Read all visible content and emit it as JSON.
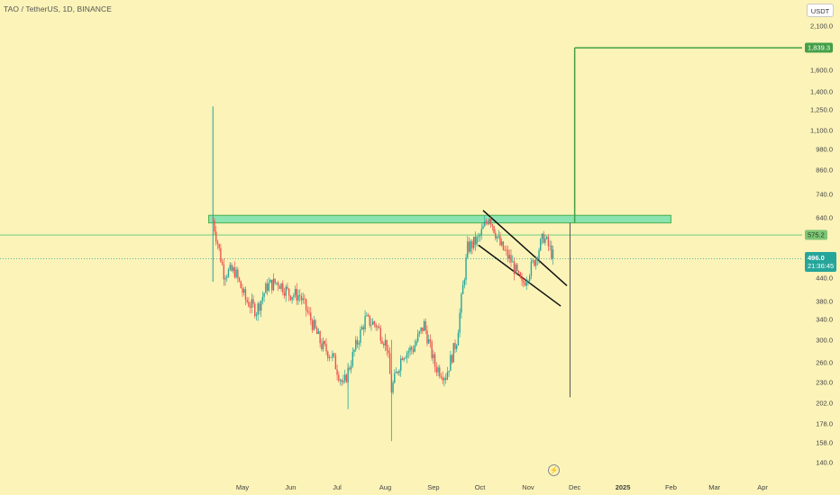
{
  "header": {
    "symbol_title": "TAO / TetherUS, 1D, BINANCE"
  },
  "price_axis": {
    "currency_button": "USDT",
    "ticks": [
      "2,100.0",
      "1,600.0",
      "1,400.0",
      "1,250.0",
      "1,100.0",
      "980.0",
      "860.0",
      "740.0",
      "640.0",
      "440.0",
      "380.0",
      "340.0",
      "300.0",
      "260.0",
      "230.0",
      "202.0",
      "178.0",
      "158.0",
      "140.0"
    ],
    "target_badge": "1,839.3",
    "resistance_badge": "575.2",
    "current_price": "496.0",
    "countdown": "21:36:45"
  },
  "time_axis": {
    "months": [
      "May",
      "Jun",
      "Jul",
      "Aug",
      "Sep",
      "Oct",
      "Nov",
      "Dec",
      "2025",
      "Feb",
      "Mar",
      "Apr"
    ]
  },
  "colors": {
    "up": "#26a69a",
    "down": "#ef5350",
    "zone": "#8be3b0",
    "target_line": "#43a047",
    "background": "#fbf3b8"
  },
  "icons": {
    "lightning": "lightning-icon"
  },
  "chart_data": {
    "type": "candlestick",
    "symbol": "TAO / TetherUS",
    "interval": "1D",
    "exchange": "BINANCE",
    "x_range": [
      "2024-04-10",
      "2025-04-15"
    ],
    "y_range": [
      130,
      2200
    ],
    "log_scale": true,
    "grid": false,
    "series": [
      {
        "name": "close_weekly",
        "points": [
          [
            "2024-04-12",
            630
          ],
          [
            "2024-04-19",
            455
          ],
          [
            "2024-04-26",
            460
          ],
          [
            "2024-05-03",
            385
          ],
          [
            "2024-05-10",
            360
          ],
          [
            "2024-05-17",
            420
          ],
          [
            "2024-05-24",
            430
          ],
          [
            "2024-05-31",
            400
          ],
          [
            "2024-06-07",
            395
          ],
          [
            "2024-06-14",
            340
          ],
          [
            "2024-06-21",
            290
          ],
          [
            "2024-06-28",
            270
          ],
          [
            "2024-07-05",
            225
          ],
          [
            "2024-07-12",
            280
          ],
          [
            "2024-07-19",
            340
          ],
          [
            "2024-07-26",
            330
          ],
          [
            "2024-08-02",
            290
          ],
          [
            "2024-08-05",
            220
          ],
          [
            "2024-08-12",
            275
          ],
          [
            "2024-08-19",
            285
          ],
          [
            "2024-08-26",
            330
          ],
          [
            "2024-09-02",
            255
          ],
          [
            "2024-09-09",
            240
          ],
          [
            "2024-09-16",
            300
          ],
          [
            "2024-09-23",
            530
          ],
          [
            "2024-09-30",
            560
          ],
          [
            "2024-10-07",
            650
          ],
          [
            "2024-10-14",
            540
          ],
          [
            "2024-10-21",
            490
          ],
          [
            "2024-10-28",
            420
          ],
          [
            "2024-11-04",
            480
          ],
          [
            "2024-11-11",
            570
          ],
          [
            "2024-11-18",
            496
          ]
        ]
      }
    ],
    "annotations": [
      {
        "type": "resistance_zone",
        "price_low": 620,
        "price_high": 650,
        "from": "2024-04-11",
        "to": "2025-02-01"
      },
      {
        "type": "horizontal_line",
        "price": 575.2
      },
      {
        "type": "target_line",
        "price": 1839.3,
        "from": "2024-12-01",
        "to": "2025-04-15"
      },
      {
        "type": "falling_channel",
        "upper": [
          [
            "2024-10-03",
            670
          ],
          [
            "2024-11-26",
            420
          ]
        ],
        "lower": [
          [
            "2024-09-30",
            540
          ],
          [
            "2024-11-22",
            370
          ]
        ]
      }
    ]
  }
}
